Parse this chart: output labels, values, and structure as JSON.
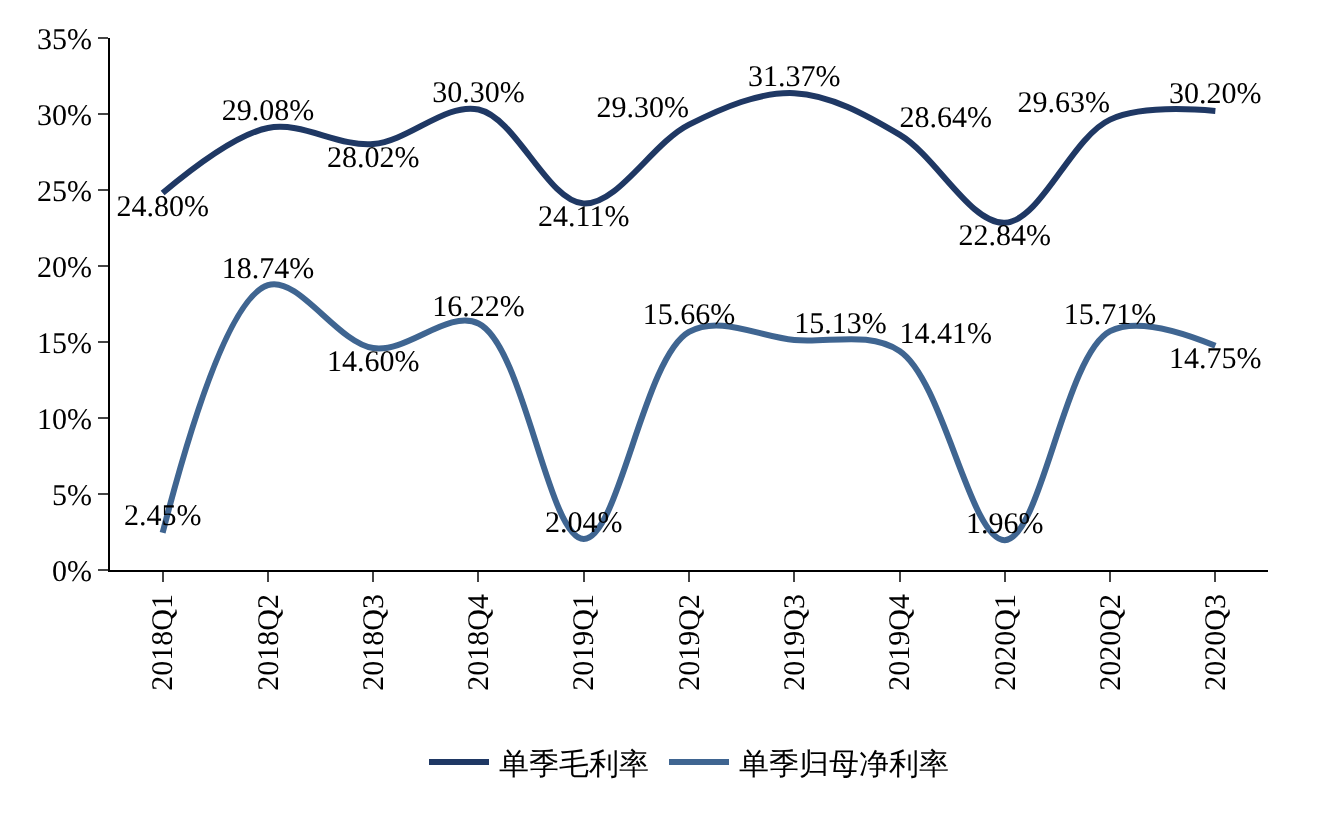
{
  "chart_data": {
    "type": "line",
    "categories": [
      "2018Q1",
      "2018Q2",
      "2018Q3",
      "2018Q4",
      "2019Q1",
      "2019Q2",
      "2019Q3",
      "2019Q4",
      "2020Q1",
      "2020Q2",
      "2020Q3"
    ],
    "series": [
      {
        "name": "单季毛利率",
        "color": "#1f3864",
        "values": [
          24.8,
          29.08,
          28.02,
          30.3,
          24.11,
          29.3,
          31.37,
          28.64,
          22.84,
          29.63,
          30.2
        ],
        "value_labels": [
          "24.80%",
          "29.08%",
          "28.02%",
          "30.30%",
          "24.11%",
          "29.30%",
          "31.37%",
          "28.64%",
          "22.84%",
          "29.63%",
          "30.20%"
        ]
      },
      {
        "name": "单季归母净利率",
        "color": "#3f6591",
        "values": [
          2.45,
          18.74,
          14.6,
          16.22,
          2.04,
          15.66,
          15.13,
          14.41,
          1.96,
          15.71,
          14.75
        ],
        "value_labels": [
          "2.45%",
          "18.74%",
          "14.60%",
          "16.22%",
          "2.04%",
          "15.66%",
          "15.13%",
          "14.41%",
          "1.96%",
          "15.71%",
          "14.75%"
        ]
      }
    ],
    "ylim": [
      0,
      35
    ],
    "yticks": [
      {
        "value": 0,
        "label": "0%"
      },
      {
        "value": 5,
        "label": "5%"
      },
      {
        "value": 10,
        "label": "10%"
      },
      {
        "value": 15,
        "label": "15%"
      },
      {
        "value": 20,
        "label": "20%"
      },
      {
        "value": 25,
        "label": "25%"
      },
      {
        "value": 30,
        "label": "30%"
      },
      {
        "value": 35,
        "label": "35%"
      }
    ],
    "legend": "bottom",
    "marker": "none",
    "line_style": "solid"
  }
}
